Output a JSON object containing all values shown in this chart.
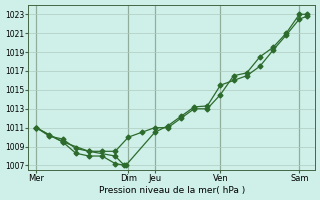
{
  "background_color": "#cef0e8",
  "grid_color": "#b0ccc0",
  "line_color": "#2d6b2d",
  "vline_color": "#446644",
  "ylim": [
    1006.5,
    1024
  ],
  "yticks": [
    1007,
    1009,
    1011,
    1013,
    1015,
    1017,
    1019,
    1021,
    1023
  ],
  "xlabel": "Pression niveau de la mer( hPa )",
  "xtick_labels": [
    "Mer",
    "Dim",
    "Jeu",
    "Ven",
    "Sam"
  ],
  "xtick_positions": [
    0.0,
    3.5,
    4.5,
    7.0,
    10.0
  ],
  "xlim": [
    -0.3,
    10.6
  ],
  "vlines": [
    0.0,
    3.5,
    4.5,
    7.0,
    10.0
  ],
  "line1_x": [
    0,
    0.5,
    1.0,
    1.5,
    2.0,
    2.5,
    3.0,
    3.5,
    4.0,
    4.5,
    5.0,
    5.5,
    6.0,
    6.5,
    7.0,
    7.5,
    8.0,
    8.5,
    9.0,
    9.5,
    10.0,
    10.3
  ],
  "line1_y": [
    1011,
    1010.1,
    1009.8,
    1008.8,
    1008.5,
    1008.5,
    1008.5,
    1010.0,
    1010.5,
    1011.0,
    1011.0,
    1012.0,
    1013.0,
    1013.0,
    1014.5,
    1016.5,
    1016.8,
    1018.5,
    1019.5,
    1021.0,
    1023.0,
    1023.0
  ],
  "line2_x": [
    0,
    0.5,
    1.0,
    1.5,
    2.0,
    2.5,
    3.0,
    3.4,
    4.5,
    5.0,
    5.5,
    6.0,
    6.5,
    7.0,
    7.5,
    8.0,
    8.5,
    9.0,
    9.5,
    10.0,
    10.3
  ],
  "line2_y": [
    1011,
    1010.2,
    1009.5,
    1008.3,
    1008.0,
    1008.0,
    1007.2,
    1007.0,
    1010.5,
    1011.2,
    1012.2,
    1013.2,
    1013.3,
    1015.5,
    1016.0,
    1016.5,
    1017.5,
    1019.2,
    1020.8,
    1022.5,
    1022.8
  ],
  "line3_x": [
    0,
    1.0,
    2.0,
    3.0,
    3.35
  ],
  "line3_y": [
    1011,
    1009.5,
    1008.5,
    1008.0,
    1007.0
  ]
}
